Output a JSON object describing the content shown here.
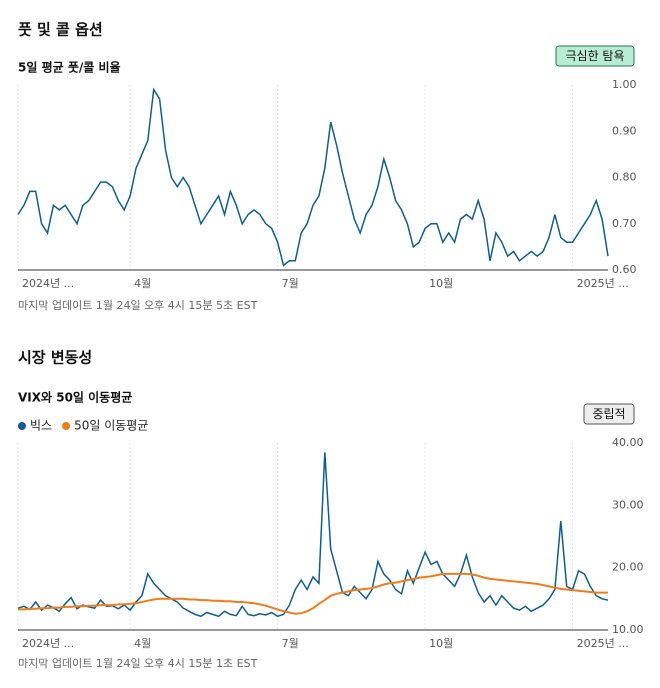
{
  "chart_data": [
    {
      "type": "line",
      "title": "풋 및 콜 옵션",
      "subtitle": "5일 평균 풋/콜 비율",
      "badge": "극심한 탐욕",
      "note": "마지막 업데이트 1월 24일 오후 4시 15분 5초 EST",
      "xlim": [
        0,
        100
      ],
      "xticks": [
        {
          "value": 0,
          "label": "2024년 ..."
        },
        {
          "value": 19,
          "label": "4월"
        },
        {
          "value": 44,
          "label": "7월"
        },
        {
          "value": 69,
          "label": "10월"
        },
        {
          "value": 94,
          "label": "2025년 ..."
        }
      ],
      "ylim": [
        0.6,
        1.0
      ],
      "yticks": [
        {
          "value": 0.6,
          "label": "0.60"
        },
        {
          "value": 0.7,
          "label": "0.70"
        },
        {
          "value": 0.8,
          "label": "0.80"
        },
        {
          "value": 0.9,
          "label": "0.90"
        },
        {
          "value": 1.0,
          "label": "1.00"
        }
      ],
      "grid": "x",
      "series": [
        {
          "color": "#0f5e8f",
          "values": [
            0.72,
            0.74,
            0.77,
            0.77,
            0.7,
            0.68,
            0.74,
            0.73,
            0.74,
            0.72,
            0.7,
            0.74,
            0.75,
            0.77,
            0.79,
            0.79,
            0.78,
            0.75,
            0.73,
            0.76,
            0.82,
            0.85,
            0.88,
            0.99,
            0.97,
            0.86,
            0.8,
            0.78,
            0.8,
            0.78,
            0.74,
            0.7,
            0.72,
            0.74,
            0.76,
            0.72,
            0.77,
            0.74,
            0.7,
            0.72,
            0.73,
            0.72,
            0.7,
            0.69,
            0.66,
            0.61,
            0.62,
            0.62,
            0.68,
            0.7,
            0.74,
            0.76,
            0.82,
            0.92,
            0.87,
            0.81,
            0.76,
            0.71,
            0.68,
            0.72,
            0.74,
            0.78,
            0.84,
            0.8,
            0.75,
            0.73,
            0.7,
            0.65,
            0.66,
            0.69,
            0.7,
            0.7,
            0.66,
            0.68,
            0.66,
            0.71,
            0.72,
            0.71,
            0.75,
            0.71,
            0.62,
            0.68,
            0.66,
            0.63,
            0.64,
            0.62,
            0.63,
            0.64,
            0.63,
            0.64,
            0.67,
            0.72,
            0.67,
            0.66,
            0.66,
            0.68,
            0.7,
            0.72,
            0.75,
            0.71,
            0.63
          ]
        }
      ]
    },
    {
      "type": "line",
      "title": "시장 변동성",
      "subtitle": "VIX와 50일 이동평균",
      "badge": "중립적",
      "note": "마지막 업데이트 1월 24일 오후 4시 15분 1초 EST",
      "xlim": [
        0,
        100
      ],
      "xticks": [
        {
          "value": 0,
          "label": "2024년 ..."
        },
        {
          "value": 19,
          "label": "4월"
        },
        {
          "value": 44,
          "label": "7월"
        },
        {
          "value": 69,
          "label": "10월"
        },
        {
          "value": 94,
          "label": "2025년 ..."
        }
      ],
      "ylim": [
        10,
        40
      ],
      "yticks": [
        {
          "value": 10,
          "label": "10.00"
        },
        {
          "value": 20,
          "label": "20.00"
        },
        {
          "value": 30,
          "label": "30.00"
        },
        {
          "value": 40,
          "label": "40.00"
        }
      ],
      "grid": "x",
      "series": [
        {
          "name": "빅스",
          "color": "#0f5e8f",
          "values": [
            13.5,
            13.8,
            13.3,
            14.5,
            13.2,
            14.0,
            13.6,
            13.0,
            14.2,
            15.2,
            13.4,
            14.0,
            13.7,
            13.5,
            14.8,
            13.8,
            13.9,
            13.4,
            14.0,
            13.2,
            14.5,
            15.5,
            19.0,
            17.5,
            16.5,
            15.5,
            15.0,
            14.5,
            13.5,
            13.0,
            12.5,
            12.2,
            12.8,
            12.5,
            12.2,
            13.0,
            12.5,
            12.3,
            13.8,
            12.5,
            12.3,
            12.6,
            12.4,
            12.8,
            12.2,
            12.5,
            14.0,
            16.5,
            18.0,
            16.5,
            18.5,
            17.5,
            38.5,
            23.0,
            19.5,
            16.0,
            15.5,
            17.0,
            16.0,
            15.0,
            16.5,
            21.0,
            19.0,
            18.0,
            16.5,
            15.8,
            19.5,
            17.5,
            20.0,
            22.5,
            20.5,
            21.0,
            19.0,
            18.0,
            17.0,
            19.0,
            22.0,
            18.5,
            16.0,
            14.5,
            15.5,
            14.0,
            15.5,
            14.5,
            13.5,
            13.2,
            13.8,
            13.0,
            13.5,
            14.0,
            15.0,
            16.5,
            27.5,
            17.0,
            16.5,
            19.5,
            19.0,
            17.0,
            15.5,
            15.0,
            14.8
          ]
        },
        {
          "name": "50일 이동평균",
          "color": "#f07c1b",
          "values": [
            13.3,
            13.3,
            13.4,
            13.4,
            13.5,
            13.5,
            13.6,
            13.6,
            13.7,
            13.7,
            13.8,
            13.8,
            13.9,
            13.9,
            14.0,
            14.0,
            14.0,
            14.1,
            14.1,
            14.2,
            14.3,
            14.5,
            14.7,
            14.9,
            15.0,
            15.0,
            15.0,
            15.0,
            15.0,
            14.9,
            14.9,
            14.8,
            14.8,
            14.7,
            14.7,
            14.6,
            14.6,
            14.5,
            14.5,
            14.4,
            14.3,
            14.1,
            13.9,
            13.6,
            13.3,
            13.0,
            12.8,
            12.6,
            12.7,
            13.0,
            13.5,
            14.2,
            14.8,
            15.5,
            15.8,
            16.0,
            16.2,
            16.4,
            16.5,
            16.6,
            16.7,
            17.0,
            17.3,
            17.5,
            17.6,
            17.8,
            18.0,
            18.2,
            18.4,
            18.5,
            18.6,
            18.8,
            19.0,
            19.0,
            19.0,
            19.0,
            19.0,
            18.9,
            18.7,
            18.4,
            18.2,
            18.1,
            18.0,
            17.9,
            17.8,
            17.7,
            17.6,
            17.5,
            17.4,
            17.2,
            17.0,
            16.8,
            16.6,
            16.5,
            16.4,
            16.3,
            16.2,
            16.1,
            16.0,
            16.0,
            16.0
          ]
        }
      ]
    }
  ]
}
